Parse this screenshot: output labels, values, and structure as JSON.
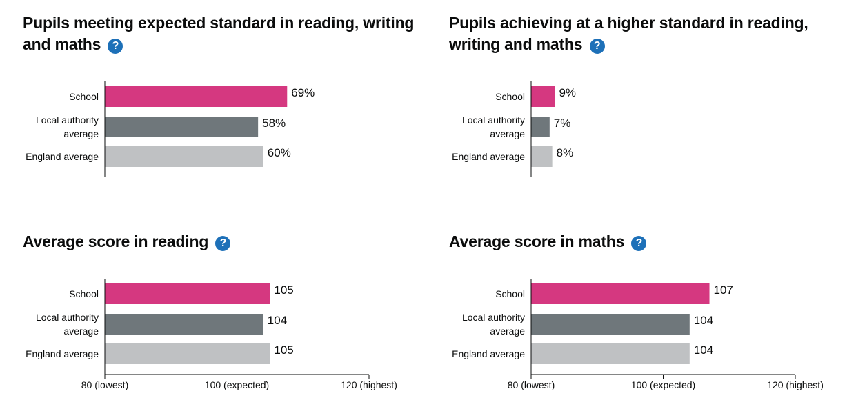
{
  "colors": {
    "school": "#d53880",
    "local": "#6f777b",
    "england": "#bfc1c3",
    "help": "#1d70b8"
  },
  "help_glyph": "?",
  "icon": "help-circle-icon",
  "chart_data": [
    {
      "type": "bar",
      "orientation": "horizontal",
      "title": "Pupils meeting expected standard in reading, writing and maths",
      "title_lines": [
        "Pupils meeting expected standard in reading, writing",
        "and maths"
      ],
      "categories": [
        [
          "School"
        ],
        [
          "Local authority",
          "average"
        ],
        [
          "England average"
        ]
      ],
      "values": [
        69,
        58,
        60
      ],
      "value_labels": [
        "69%",
        "58%",
        "60%"
      ],
      "xlim": [
        0,
        100
      ],
      "ticks": []
    },
    {
      "type": "bar",
      "orientation": "horizontal",
      "title": "Pupils achieving at a higher standard in reading, writing and maths",
      "title_lines": [
        "Pupils achieving at a higher standard in reading,",
        "writing and maths"
      ],
      "categories": [
        [
          "School"
        ],
        [
          "Local authority",
          "average"
        ],
        [
          "England average"
        ]
      ],
      "values": [
        9,
        7,
        8
      ],
      "value_labels": [
        "9%",
        "7%",
        "8%"
      ],
      "xlim": [
        0,
        100
      ],
      "ticks": []
    },
    {
      "type": "bar",
      "orientation": "horizontal",
      "title": "Average score in reading",
      "title_lines": [
        "Average score in reading"
      ],
      "categories": [
        [
          "School"
        ],
        [
          "Local authority",
          "average"
        ],
        [
          "England average"
        ]
      ],
      "values": [
        105,
        104,
        105
      ],
      "value_labels": [
        "105",
        "104",
        "105"
      ],
      "xlim": [
        80,
        120
      ],
      "ticks": [
        {
          "value": 80,
          "label": "80 (lowest)"
        },
        {
          "value": 100,
          "label": "100 (expected)"
        },
        {
          "value": 120,
          "label": "120 (highest)"
        }
      ]
    },
    {
      "type": "bar",
      "orientation": "horizontal",
      "title": "Average score in maths",
      "title_lines": [
        "Average score in maths"
      ],
      "categories": [
        [
          "School"
        ],
        [
          "Local authority",
          "average"
        ],
        [
          "England average"
        ]
      ],
      "values": [
        107,
        104,
        104
      ],
      "value_labels": [
        "107",
        "104",
        "104"
      ],
      "xlim": [
        80,
        120
      ],
      "ticks": [
        {
          "value": 80,
          "label": "80 (lowest)"
        },
        {
          "value": 100,
          "label": "100 (expected)"
        },
        {
          "value": 120,
          "label": "120 (highest)"
        }
      ]
    }
  ]
}
